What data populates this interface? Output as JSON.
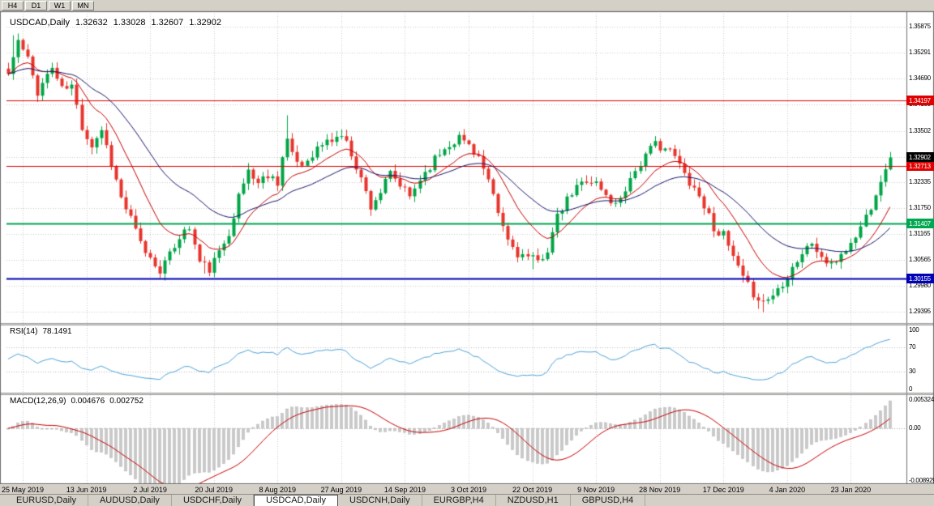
{
  "toolbar": {
    "timeframes": [
      "H4",
      "D1",
      "W1",
      "MN"
    ]
  },
  "chart": {
    "title": {
      "symbol": "USDCAD,Daily",
      "open": "1.32632",
      "high": "1.33028",
      "low": "1.32607",
      "close": "1.32902"
    },
    "levels": [
      {
        "price": 1.34197,
        "label": "1.34197",
        "color": "#e00000",
        "line_width": 1
      },
      {
        "price": 1.32713,
        "label": "1.32713",
        "color": "#e00000",
        "line_width": 1
      },
      {
        "price": 1.31407,
        "label": "1.31407",
        "color": "#00a650",
        "line_width": 2
      },
      {
        "price": 1.30155,
        "label": "1.30155",
        "color": "#0000b4",
        "line_width": 2
      },
      {
        "price": 1.32902,
        "label": "1.32902",
        "color": "#000000",
        "line_width": 0
      }
    ]
  },
  "rsi": {
    "label": "RSI(14)",
    "value": "78.1491",
    "axis_labels": [
      {
        "text": "100",
        "v": 100
      },
      {
        "text": "70",
        "v": 70
      },
      {
        "text": "30",
        "v": 30
      },
      {
        "text": "0",
        "v": 0
      }
    ],
    "dotted_levels": [
      70,
      30
    ]
  },
  "macd": {
    "label": "MACD(12,26,9)",
    "value1": "0.004676",
    "value2": "0.002752",
    "max": 0.005324,
    "min": -0.008929,
    "axis_labels": [
      {
        "text": "0.005324",
        "v": 0.005324
      },
      {
        "text": "0.00",
        "v": 0
      },
      {
        "text": "-0.008929",
        "v": -0.008929
      }
    ]
  },
  "tabs": [
    {
      "label": "EURUSD,Daily",
      "active": false
    },
    {
      "label": "AUDUSD,Daily",
      "active": false
    },
    {
      "label": "USDCHF,Daily",
      "active": false
    },
    {
      "label": "USDCAD,Daily",
      "active": true
    },
    {
      "label": "USDCNH,Daily",
      "active": false
    },
    {
      "label": "EURGBP,H4",
      "active": false
    },
    {
      "label": "NZDUSD,H1",
      "active": false
    },
    {
      "label": "GBPUSD,H4",
      "active": false
    }
  ],
  "colors": {
    "up": "#00a546",
    "down": "#e8342c",
    "ma_fast": "#c80000",
    "ma_slow": "#16166a",
    "rsi_line": "#4fa3d8",
    "macd_hist": "#c9c9c9",
    "macd_hist_edge": "#b2b2b2",
    "macd_signal": "#c80000",
    "grid": "#cccccc",
    "panel_border": "#6e6e6e",
    "separator": "#d4d0c8"
  },
  "chart_data": {
    "type": "candlestick",
    "symbol": "USDCAD",
    "timeframe": "Daily",
    "count": 181,
    "x_tick_labels": [
      "25 May 2019",
      "13 Jun 2019",
      "2 Jul 2019",
      "20 Jul 2019",
      "8 Aug 2019",
      "27 Aug 2019",
      "14 Sep 2019",
      "3 Oct 2019",
      "22 Oct 2019",
      "9 Nov 2019",
      "28 Nov 2019",
      "17 Dec 2019",
      "4 Jan 2020",
      "23 Jan 2020"
    ],
    "price_axis_ticks": [
      "1.35875",
      "1.35291",
      "1.34690",
      "1.34105",
      "1.33502",
      "1.32920",
      "1.32335",
      "1.31750",
      "1.31165",
      "1.30565",
      "1.29980",
      "1.29395"
    ],
    "axis_top_price": 1.35875,
    "axis_bottom_price": 1.29395,
    "last_candle": {
      "open": 1.32632,
      "high": 1.33028,
      "low": 1.32607,
      "close": 1.32902
    },
    "close_waypoints": [
      [
        0,
        1.348
      ],
      [
        2,
        1.3555
      ],
      [
        4,
        1.3512
      ],
      [
        6,
        1.344
      ],
      [
        8,
        1.3478
      ],
      [
        9,
        1.3495
      ],
      [
        11,
        1.3445
      ],
      [
        13,
        1.3452
      ],
      [
        15,
        1.336
      ],
      [
        17,
        1.3318
      ],
      [
        19,
        1.3355
      ],
      [
        21,
        1.3278
      ],
      [
        23,
        1.3198
      ],
      [
        25,
        1.315
      ],
      [
        27,
        1.3094
      ],
      [
        29,
        1.306
      ],
      [
        31,
        1.3036
      ],
      [
        33,
        1.3066
      ],
      [
        35,
        1.3112
      ],
      [
        37,
        1.313
      ],
      [
        39,
        1.3052
      ],
      [
        41,
        1.3036
      ],
      [
        43,
        1.3072
      ],
      [
        45,
        1.3122
      ],
      [
        47,
        1.32
      ],
      [
        49,
        1.3262
      ],
      [
        51,
        1.3232
      ],
      [
        53,
        1.3252
      ],
      [
        55,
        1.3236
      ],
      [
        56,
        1.3292
      ],
      [
        57,
        1.333
      ],
      [
        58,
        1.3292
      ],
      [
        60,
        1.3272
      ],
      [
        62,
        1.33
      ],
      [
        64,
        1.332
      ],
      [
        66,
        1.333
      ],
      [
        68,
        1.3342
      ],
      [
        70,
        1.33
      ],
      [
        72,
        1.3242
      ],
      [
        74,
        1.318
      ],
      [
        76,
        1.3212
      ],
      [
        78,
        1.3252
      ],
      [
        80,
        1.3226
      ],
      [
        82,
        1.32
      ],
      [
        84,
        1.3242
      ],
      [
        86,
        1.3272
      ],
      [
        88,
        1.33
      ],
      [
        90,
        1.3322
      ],
      [
        92,
        1.3336
      ],
      [
        94,
        1.332
      ],
      [
        96,
        1.3292
      ],
      [
        98,
        1.3232
      ],
      [
        100,
        1.3162
      ],
      [
        102,
        1.3102
      ],
      [
        104,
        1.3072
      ],
      [
        106,
        1.3062
      ],
      [
        108,
        1.3052
      ],
      [
        110,
        1.3082
      ],
      [
        112,
        1.3152
      ],
      [
        114,
        1.3192
      ],
      [
        116,
        1.3222
      ],
      [
        118,
        1.3242
      ],
      [
        120,
        1.3232
      ],
      [
        122,
        1.3202
      ],
      [
        124,
        1.3182
      ],
      [
        126,
        1.3222
      ],
      [
        128,
        1.3262
      ],
      [
        130,
        1.3292
      ],
      [
        132,
        1.3322
      ],
      [
        134,
        1.3312
      ],
      [
        136,
        1.3292
      ],
      [
        138,
        1.3252
      ],
      [
        140,
        1.3222
      ],
      [
        142,
        1.3182
      ],
      [
        144,
        1.3132
      ],
      [
        146,
        1.3112
      ],
      [
        148,
        1.3062
      ],
      [
        150,
        1.3012
      ],
      [
        152,
        1.2982
      ],
      [
        154,
        1.2962
      ],
      [
        156,
        1.2978
      ],
      [
        158,
        1.3006
      ],
      [
        160,
        1.3042
      ],
      [
        162,
        1.3072
      ],
      [
        164,
        1.3096
      ],
      [
        166,
        1.3062
      ],
      [
        168,
        1.3042
      ],
      [
        170,
        1.3072
      ],
      [
        172,
        1.3092
      ],
      [
        174,
        1.3132
      ],
      [
        176,
        1.3182
      ],
      [
        178,
        1.3242
      ],
      [
        179,
        1.32632
      ],
      [
        180,
        1.32902
      ]
    ],
    "spikes": [
      {
        "i": 1,
        "h": 1.3568
      },
      {
        "i": 2,
        "h": 1.3572
      },
      {
        "i": 31,
        "l": 1.3018
      },
      {
        "i": 40,
        "l": 1.3026
      },
      {
        "i": 57,
        "h": 1.3386
      },
      {
        "i": 68,
        "h": 1.3354
      },
      {
        "i": 92,
        "h": 1.3349
      },
      {
        "i": 107,
        "l": 1.3036
      },
      {
        "i": 153,
        "l": 1.2946
      },
      {
        "i": 154,
        "l": 1.2938
      }
    ],
    "noise": 0.0011,
    "wick": 0.0014,
    "seed": 11,
    "indicators": {
      "ma_fast_period": 12,
      "ma_slow_period": 30,
      "rsi": {
        "period": 14,
        "last_value": 78.1491
      },
      "macd": {
        "fast": 12,
        "slow": 26,
        "signal": 9,
        "last_values": [
          0.004676,
          0.002752
        ]
      }
    }
  }
}
